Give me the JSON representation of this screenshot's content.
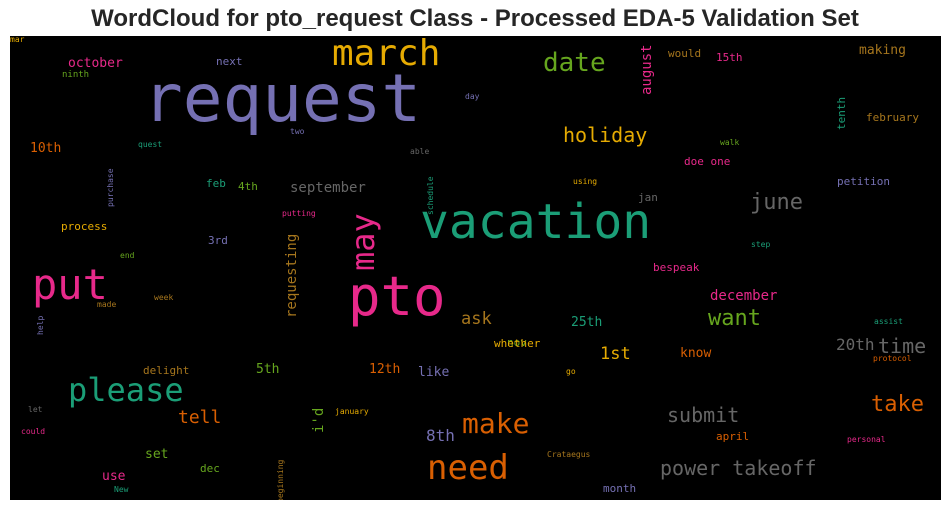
{
  "chart_data": {
    "type": "wordcloud",
    "title": "WordCloud for pto_request Class - Processed EDA-5 Validation Set",
    "background": "#000000",
    "colormap": "Dark2",
    "words": [
      {
        "text": "request",
        "size": 66,
        "color": "#7570b3"
      },
      {
        "text": "vacation",
        "size": 48,
        "color": "#1b9e77"
      },
      {
        "text": "pto",
        "size": 54,
        "color": "#e7298a"
      },
      {
        "text": "put",
        "size": 42,
        "color": "#e7298a"
      },
      {
        "text": "march",
        "size": 36,
        "color": "#e6ab02"
      },
      {
        "text": "need",
        "size": 34,
        "color": "#d95f02"
      },
      {
        "text": "please",
        "size": 32,
        "color": "#1b9e77"
      },
      {
        "text": "may",
        "size": 32,
        "color": "#e7298a",
        "rotate": true
      },
      {
        "text": "make",
        "size": 28,
        "color": "#d95f02"
      },
      {
        "text": "date",
        "size": 26,
        "color": "#66a61e"
      },
      {
        "text": "june",
        "size": 22,
        "color": "#666666"
      },
      {
        "text": "want",
        "size": 22,
        "color": "#66a61e"
      },
      {
        "text": "take",
        "size": 22,
        "color": "#d95f02"
      },
      {
        "text": "holiday",
        "size": 20,
        "color": "#e6ab02"
      },
      {
        "text": "power takeoff",
        "size": 20,
        "color": "#666666"
      },
      {
        "text": "submit",
        "size": 20,
        "color": "#666666"
      },
      {
        "text": "time",
        "size": 20,
        "color": "#666666"
      },
      {
        "text": "tell",
        "size": 18,
        "color": "#d95f02"
      },
      {
        "text": "ask",
        "size": 17,
        "color": "#a6761d"
      },
      {
        "text": "1st",
        "size": 17,
        "color": "#e6ab02"
      },
      {
        "text": "20th",
        "size": 16,
        "color": "#666666"
      },
      {
        "text": "8th",
        "size": 16,
        "color": "#7570b3"
      },
      {
        "text": "september",
        "size": 14,
        "color": "#666666"
      },
      {
        "text": "december",
        "size": 14,
        "color": "#e7298a"
      },
      {
        "text": "august",
        "size": 14,
        "color": "#e7298a",
        "rotate": true
      },
      {
        "text": "requesting",
        "size": 14,
        "color": "#a6761d",
        "rotate": true
      },
      {
        "text": "i'd",
        "size": 14,
        "color": "#66a61e",
        "rotate": true
      },
      {
        "text": "october",
        "size": 13,
        "color": "#e7298a"
      },
      {
        "text": "making",
        "size": 13,
        "color": "#a6761d"
      },
      {
        "text": "know",
        "size": 13,
        "color": "#d95f02"
      },
      {
        "text": "like",
        "size": 13,
        "color": "#7570b3"
      },
      {
        "text": "25th",
        "size": 13,
        "color": "#1b9e77"
      },
      {
        "text": "12th",
        "size": 13,
        "color": "#d95f02"
      },
      {
        "text": "5th",
        "size": 13,
        "color": "#66a61e"
      },
      {
        "text": "10th",
        "size": 13,
        "color": "#d95f02"
      },
      {
        "text": "set",
        "size": 13,
        "color": "#66a61e"
      },
      {
        "text": "use",
        "size": 13,
        "color": "#e7298a"
      },
      {
        "text": "doe one",
        "size": 11,
        "color": "#e7298a"
      },
      {
        "text": "february",
        "size": 11,
        "color": "#a6761d"
      },
      {
        "text": "petition",
        "size": 11,
        "color": "#7570b3"
      },
      {
        "text": "april",
        "size": 11,
        "color": "#d95f02"
      },
      {
        "text": "month",
        "size": 11,
        "color": "#7570b3"
      },
      {
        "text": "delight",
        "size": 11,
        "color": "#a6761d"
      },
      {
        "text": "nov",
        "size": 11,
        "color": "#66a61e"
      },
      {
        "text": "whether",
        "size": 11,
        "color": "#e6ab02"
      },
      {
        "text": "process",
        "size": 11,
        "color": "#e6ab02"
      },
      {
        "text": "3rd",
        "size": 11,
        "color": "#7570b3"
      },
      {
        "text": "feb",
        "size": 11,
        "color": "#1b9e77"
      },
      {
        "text": "4th",
        "size": 11,
        "color": "#66a61e"
      },
      {
        "text": "next",
        "size": 11,
        "color": "#7570b3"
      },
      {
        "text": "would",
        "size": 11,
        "color": "#a6761d"
      },
      {
        "text": "15th",
        "size": 11,
        "color": "#e7298a"
      },
      {
        "text": "tenth",
        "size": 11,
        "color": "#1b9e77",
        "rotate": true
      },
      {
        "text": "bespeak",
        "size": 11,
        "color": "#e7298a"
      },
      {
        "text": "jan",
        "size": 11,
        "color": "#666666"
      },
      {
        "text": "dec",
        "size": 11,
        "color": "#66a61e"
      },
      {
        "text": "ninth",
        "size": 9,
        "color": "#66a61e"
      },
      {
        "text": "day",
        "size": 8,
        "color": "#7570b3"
      },
      {
        "text": "two",
        "size": 8,
        "color": "#7570b3"
      },
      {
        "text": "quest",
        "size": 8,
        "color": "#1b9e77"
      },
      {
        "text": "purchase",
        "size": 8,
        "color": "#7570b3",
        "rotate": true
      },
      {
        "text": "able",
        "size": 8,
        "color": "#666666"
      },
      {
        "text": "schedule",
        "size": 8,
        "color": "#1b9e77",
        "rotate": true
      },
      {
        "text": "walk",
        "size": 8,
        "color": "#66a61e"
      },
      {
        "text": "using",
        "size": 8,
        "color": "#e6ab02"
      },
      {
        "text": "putting",
        "size": 8,
        "color": "#e7298a"
      },
      {
        "text": "step",
        "size": 8,
        "color": "#1b9e77"
      },
      {
        "text": "end",
        "size": 8,
        "color": "#66a61e"
      },
      {
        "text": "made",
        "size": 8,
        "color": "#a6761d"
      },
      {
        "text": "week",
        "size": 8,
        "color": "#a6761d"
      },
      {
        "text": "help",
        "size": 8,
        "color": "#7570b3",
        "rotate": true
      },
      {
        "text": "assist",
        "size": 8,
        "color": "#1b9e77"
      },
      {
        "text": "protocol",
        "size": 8,
        "color": "#d95f02"
      },
      {
        "text": "go",
        "size": 8,
        "color": "#e6ab02"
      },
      {
        "text": "let",
        "size": 8,
        "color": "#666666"
      },
      {
        "text": "could",
        "size": 8,
        "color": "#e7298a"
      },
      {
        "text": "january",
        "size": 8,
        "color": "#e6ab02"
      },
      {
        "text": "beginning",
        "size": 8,
        "color": "#a6761d",
        "rotate": true
      },
      {
        "text": "Crataegus",
        "size": 8,
        "color": "#a6761d"
      },
      {
        "text": "personal",
        "size": 8,
        "color": "#e7298a"
      },
      {
        "text": "New",
        "size": 8,
        "color": "#1b9e77"
      },
      {
        "text": "mar",
        "size": 8,
        "color": "#e6ab02"
      }
    ]
  }
}
